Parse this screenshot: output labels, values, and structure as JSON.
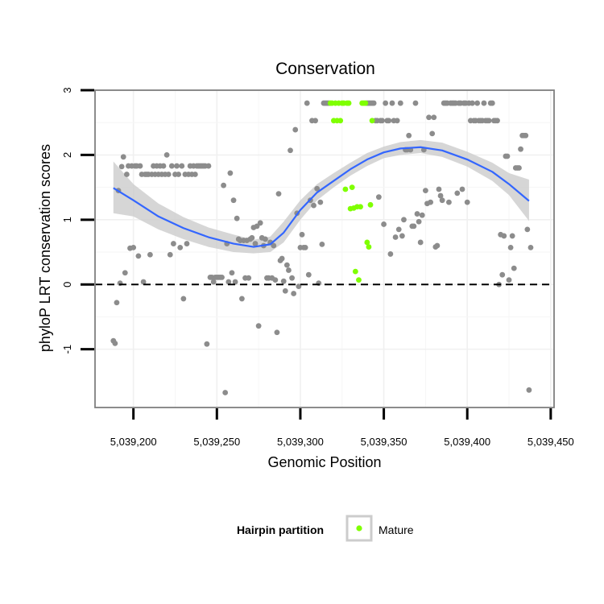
{
  "chart_data": {
    "type": "scatter",
    "title": "Conservation",
    "xlabel": "Genomic Position",
    "ylabel": "phyloP LRT conservation scores",
    "xlim": [
      5039177,
      5039452
    ],
    "ylim": [
      -1.9,
      3.0
    ],
    "x_ticks": [
      {
        "value": 5039200,
        "label": "5,039,200"
      },
      {
        "value": 5039250,
        "label": "5,039,250"
      },
      {
        "value": 5039300,
        "label": "5,039,300"
      },
      {
        "value": 5039350,
        "label": "5,039,350"
      },
      {
        "value": 5039400,
        "label": "5,039,400"
      },
      {
        "value": 5039450,
        "label": "5,039,450"
      }
    ],
    "y_ticks": [
      {
        "value": -1,
        "label": "-1"
      },
      {
        "value": 0,
        "label": "0"
      },
      {
        "value": 1,
        "label": "1"
      },
      {
        "value": 2,
        "label": "2"
      },
      {
        "value": 3,
        "label": "3"
      }
    ],
    "reference_line": {
      "y": 0,
      "style": "dashed"
    },
    "legend": {
      "title": "Hairpin partition",
      "position": "bottom",
      "entries": [
        {
          "label": "Mature",
          "color": "#7fff00"
        }
      ]
    },
    "colors": {
      "other": "#8c8c8c",
      "mature": "#7fff00",
      "smooth": "#3366ff",
      "band": "#cccccc"
    },
    "series": [
      {
        "name": "Other",
        "points": [
          [
            5039188,
            -0.87
          ],
          [
            5039189,
            -0.91
          ],
          [
            5039190,
            -0.28
          ],
          [
            5039191,
            1.45
          ],
          [
            5039192,
            0.02
          ],
          [
            5039193,
            1.82
          ],
          [
            5039194,
            1.97
          ],
          [
            5039195,
            0.18
          ],
          [
            5039196,
            1.7
          ],
          [
            5039197,
            1.83
          ],
          [
            5039198,
            0.56
          ],
          [
            5039199,
            1.83
          ],
          [
            5039200,
            0.57
          ],
          [
            5039201,
            1.83
          ],
          [
            5039202,
            1.83
          ],
          [
            5039203,
            0.44
          ],
          [
            5039204,
            1.83
          ],
          [
            5039205,
            1.7
          ],
          [
            5039206,
            0.04
          ],
          [
            5039207,
            1.7
          ],
          [
            5039208,
            1.7
          ],
          [
            5039209,
            1.7
          ],
          [
            5039210,
            0.46
          ],
          [
            5039211,
            1.7
          ],
          [
            5039212,
            1.83
          ],
          [
            5039213,
            1.7
          ],
          [
            5039214,
            1.83
          ],
          [
            5039215,
            1.7
          ],
          [
            5039216,
            1.83
          ],
          [
            5039217,
            1.7
          ],
          [
            5039218,
            1.83
          ],
          [
            5039219,
            1.7
          ],
          [
            5039220,
            2.0
          ],
          [
            5039221,
            1.7
          ],
          [
            5039222,
            0.46
          ],
          [
            5039223,
            1.83
          ],
          [
            5039224,
            0.63
          ],
          [
            5039225,
            1.7
          ],
          [
            5039226,
            1.83
          ],
          [
            5039227,
            1.7
          ],
          [
            5039228,
            0.57
          ],
          [
            5039229,
            1.83
          ],
          [
            5039230,
            -0.22
          ],
          [
            5039231,
            1.7
          ],
          [
            5039232,
            0.63
          ],
          [
            5039233,
            1.7
          ],
          [
            5039234,
            1.83
          ],
          [
            5039235,
            1.7
          ],
          [
            5039236,
            1.83
          ],
          [
            5039237,
            1.7
          ],
          [
            5039238,
            1.83
          ],
          [
            5039239,
            1.83
          ],
          [
            5039240,
            1.83
          ],
          [
            5039241,
            1.83
          ],
          [
            5039242,
            1.83
          ],
          [
            5039243,
            1.83
          ],
          [
            5039244,
            -0.92
          ],
          [
            5039245,
            1.83
          ],
          [
            5039246,
            0.11
          ],
          [
            5039247,
            0.11
          ],
          [
            5039248,
            0.04
          ],
          [
            5039249,
            0.11
          ],
          [
            5039250,
            0.11
          ],
          [
            5039251,
            0.11
          ],
          [
            5039252,
            0.11
          ],
          [
            5039253,
            0.11
          ],
          [
            5039254,
            1.53
          ],
          [
            5039255,
            -1.67
          ],
          [
            5039256,
            0.63
          ],
          [
            5039257,
            0.04
          ],
          [
            5039258,
            1.72
          ],
          [
            5039259,
            0.18
          ],
          [
            5039260,
            1.3
          ],
          [
            5039261,
            0.04
          ],
          [
            5039262,
            1.02
          ],
          [
            5039263,
            0.7
          ],
          [
            5039264,
            0.68
          ],
          [
            5039265,
            -0.22
          ],
          [
            5039266,
            0.68
          ],
          [
            5039267,
            0.1
          ],
          [
            5039268,
            0.68
          ],
          [
            5039269,
            0.1
          ],
          [
            5039270,
            0.7
          ],
          [
            5039271,
            0.72
          ],
          [
            5039272,
            0.88
          ],
          [
            5039273,
            0.63
          ],
          [
            5039274,
            0.9
          ],
          [
            5039275,
            -0.64
          ],
          [
            5039276,
            0.95
          ],
          [
            5039277,
            0.72
          ],
          [
            5039278,
            0.6
          ],
          [
            5039279,
            0.7
          ],
          [
            5039280,
            0.1
          ],
          [
            5039281,
            0.1
          ],
          [
            5039282,
            0.65
          ],
          [
            5039283,
            0.1
          ],
          [
            5039284,
            0.6
          ],
          [
            5039285,
            0.07
          ],
          [
            5039286,
            -0.74
          ],
          [
            5039287,
            1.4
          ],
          [
            5039288,
            0.37
          ],
          [
            5039289,
            0.4
          ],
          [
            5039290,
            0.05
          ],
          [
            5039291,
            -0.1
          ],
          [
            5039292,
            0.3
          ],
          [
            5039293,
            0.22
          ],
          [
            5039294,
            2.07
          ],
          [
            5039295,
            0.1
          ],
          [
            5039296,
            -0.14
          ],
          [
            5039297,
            2.39
          ],
          [
            5039298,
            1.1
          ],
          [
            5039299,
            -0.03
          ],
          [
            5039300,
            0.57
          ],
          [
            5039301,
            0.77
          ],
          [
            5039302,
            0.57
          ],
          [
            5039303,
            0.57
          ],
          [
            5039304,
            2.8
          ],
          [
            5039305,
            0.15
          ],
          [
            5039306,
            1.3
          ],
          [
            5039307,
            2.53
          ],
          [
            5039308,
            1.22
          ],
          [
            5039309,
            2.53
          ],
          [
            5039310,
            1.48
          ],
          [
            5039311,
            0.02
          ],
          [
            5039312,
            1.27
          ],
          [
            5039313,
            0.62
          ],
          [
            5039314,
            2.8
          ],
          [
            5039315,
            2.8
          ],
          [
            5039316,
            2.8
          ],
          [
            5039317,
            2.8
          ],
          [
            5039340,
            2.8
          ],
          [
            5039341,
            2.8
          ],
          [
            5039342,
            2.8
          ],
          [
            5039343,
            2.8
          ],
          [
            5039344,
            2.8
          ],
          [
            5039345,
            2.53
          ],
          [
            5039346,
            2.53
          ],
          [
            5039347,
            1.35
          ],
          [
            5039348,
            2.53
          ],
          [
            5039349,
            2.53
          ],
          [
            5039350,
            0.93
          ],
          [
            5039351,
            2.8
          ],
          [
            5039352,
            2.53
          ],
          [
            5039353,
            2.53
          ],
          [
            5039354,
            0.47
          ],
          [
            5039355,
            2.8
          ],
          [
            5039356,
            2.53
          ],
          [
            5039357,
            0.73
          ],
          [
            5039358,
            2.53
          ],
          [
            5039359,
            0.85
          ],
          [
            5039360,
            2.8
          ],
          [
            5039361,
            0.75
          ],
          [
            5039362,
            1.0
          ],
          [
            5039363,
            2.08
          ],
          [
            5039364,
            2.08
          ],
          [
            5039365,
            2.3
          ],
          [
            5039366,
            2.08
          ],
          [
            5039367,
            0.9
          ],
          [
            5039368,
            0.9
          ],
          [
            5039369,
            2.8
          ],
          [
            5039370,
            1.09
          ],
          [
            5039371,
            0.97
          ],
          [
            5039372,
            0.65
          ],
          [
            5039373,
            1.07
          ],
          [
            5039374,
            2.08
          ],
          [
            5039375,
            1.45
          ],
          [
            5039376,
            1.25
          ],
          [
            5039377,
            2.58
          ],
          [
            5039378,
            1.27
          ],
          [
            5039379,
            2.33
          ],
          [
            5039380,
            2.58
          ],
          [
            5039381,
            0.58
          ],
          [
            5039382,
            0.6
          ],
          [
            5039383,
            1.47
          ],
          [
            5039384,
            1.37
          ],
          [
            5039385,
            1.3
          ],
          [
            5039386,
            2.8
          ],
          [
            5039387,
            2.8
          ],
          [
            5039388,
            2.8
          ],
          [
            5039389,
            1.27
          ],
          [
            5039390,
            2.8
          ],
          [
            5039391,
            2.8
          ],
          [
            5039392,
            2.8
          ],
          [
            5039393,
            2.8
          ],
          [
            5039394,
            1.41
          ],
          [
            5039395,
            2.8
          ],
          [
            5039396,
            2.8
          ],
          [
            5039397,
            1.47
          ],
          [
            5039398,
            2.8
          ],
          [
            5039399,
            2.8
          ],
          [
            5039400,
            1.27
          ],
          [
            5039401,
            2.8
          ],
          [
            5039402,
            2.53
          ],
          [
            5039403,
            2.8
          ],
          [
            5039404,
            2.53
          ],
          [
            5039405,
            2.53
          ],
          [
            5039406,
            2.8
          ],
          [
            5039407,
            2.53
          ],
          [
            5039408,
            2.53
          ],
          [
            5039409,
            2.53
          ],
          [
            5039410,
            2.8
          ],
          [
            5039411,
            2.53
          ],
          [
            5039412,
            2.53
          ],
          [
            5039413,
            2.53
          ],
          [
            5039414,
            2.8
          ],
          [
            5039415,
            2.8
          ],
          [
            5039416,
            2.53
          ],
          [
            5039417,
            2.53
          ],
          [
            5039418,
            2.53
          ],
          [
            5039419,
            0.0
          ],
          [
            5039420,
            0.77
          ],
          [
            5039421,
            0.15
          ],
          [
            5039422,
            0.75
          ],
          [
            5039423,
            1.98
          ],
          [
            5039424,
            1.98
          ],
          [
            5039425,
            0.07
          ],
          [
            5039426,
            0.57
          ],
          [
            5039427,
            0.75
          ],
          [
            5039428,
            0.25
          ],
          [
            5039429,
            1.8
          ],
          [
            5039430,
            1.8
          ],
          [
            5039431,
            1.8
          ],
          [
            5039432,
            2.09
          ],
          [
            5039433,
            2.3
          ],
          [
            5039434,
            2.3
          ],
          [
            5039435,
            2.3
          ],
          [
            5039436,
            0.85
          ],
          [
            5039437,
            -1.63
          ],
          [
            5039438,
            0.57
          ]
        ]
      },
      {
        "name": "Mature",
        "points": [
          [
            5039318,
            2.8
          ],
          [
            5039319,
            2.8
          ],
          [
            5039320,
            2.53
          ],
          [
            5039321,
            2.8
          ],
          [
            5039322,
            2.53
          ],
          [
            5039323,
            2.8
          ],
          [
            5039324,
            2.53
          ],
          [
            5039325,
            2.8
          ],
          [
            5039326,
            2.8
          ],
          [
            5039327,
            1.47
          ],
          [
            5039328,
            2.8
          ],
          [
            5039329,
            2.8
          ],
          [
            5039330,
            1.17
          ],
          [
            5039331,
            1.5
          ],
          [
            5039332,
            1.18
          ],
          [
            5039333,
            0.2
          ],
          [
            5039334,
            1.2
          ],
          [
            5039335,
            0.07
          ],
          [
            5039336,
            1.2
          ],
          [
            5039337,
            2.8
          ],
          [
            5039338,
            2.8
          ],
          [
            5039339,
            2.8
          ],
          [
            5039340,
            0.65
          ],
          [
            5039341,
            0.58
          ],
          [
            5039342,
            1.23
          ],
          [
            5039343,
            2.53
          ]
        ]
      },
      {
        "name": "Smooth fit",
        "x": [
          5039188,
          5039200,
          5039215,
          5039230,
          5039245,
          5039260,
          5039272,
          5039282,
          5039290,
          5039300,
          5039310,
          5039320,
          5039330,
          5039340,
          5039350,
          5039360,
          5039372,
          5039385,
          5039400,
          5039415,
          5039425,
          5039437
        ],
        "y": [
          1.49,
          1.3,
          1.05,
          0.87,
          0.73,
          0.63,
          0.58,
          0.62,
          0.8,
          1.15,
          1.42,
          1.6,
          1.78,
          1.93,
          2.04,
          2.1,
          2.12,
          2.07,
          1.93,
          1.74,
          1.55,
          1.29
        ],
        "lower": [
          1.1,
          1.05,
          0.85,
          0.7,
          0.58,
          0.5,
          0.48,
          0.5,
          0.65,
          1.0,
          1.3,
          1.5,
          1.68,
          1.83,
          1.95,
          2.0,
          2.03,
          1.97,
          1.82,
          1.6,
          1.38,
          0.98
        ],
        "upper": [
          1.9,
          1.55,
          1.25,
          1.04,
          0.88,
          0.77,
          0.69,
          0.74,
          0.97,
          1.3,
          1.55,
          1.72,
          1.88,
          2.03,
          2.13,
          2.2,
          2.23,
          2.19,
          2.05,
          1.88,
          1.72,
          1.62
        ]
      }
    ]
  }
}
